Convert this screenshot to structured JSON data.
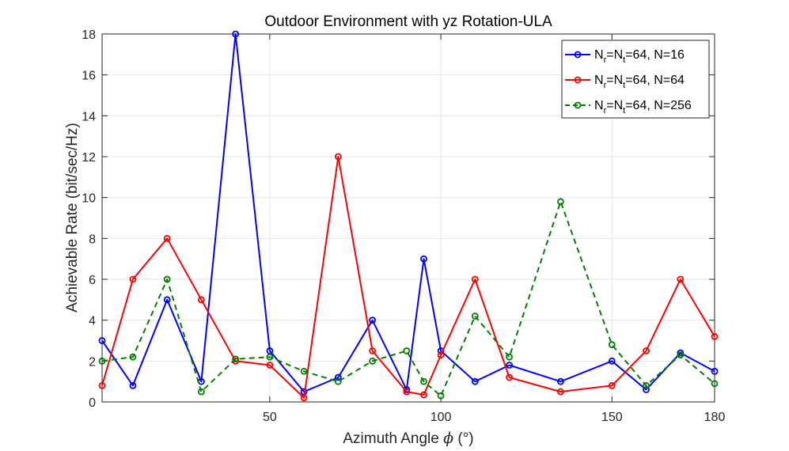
{
  "chart_data": {
    "type": "line",
    "title": "Outdoor Environment with yz Rotation-ULA",
    "xlabel": "Azimuth Angle",
    "xlabel_symbol": "ϕ",
    "xlabel_unit": "(°)",
    "ylabel": "Achievable Rate (bit/sec/Hz)",
    "xlim": [
      1,
      180
    ],
    "ylim": [
      0,
      18
    ],
    "xticks": [
      50,
      100,
      150,
      180
    ],
    "yticks": [
      0,
      2,
      4,
      6,
      8,
      10,
      12,
      14,
      16,
      18
    ],
    "xtick_labels": [
      "50",
      "100",
      "150",
      "180"
    ],
    "ytick_labels": [
      "0",
      "2",
      "4",
      "6",
      "8",
      "10",
      "12",
      "14",
      "16",
      "18"
    ],
    "grid": true,
    "legend_position": "top-right",
    "x": [
      1,
      10,
      20,
      30,
      40,
      50,
      60,
      70,
      80,
      90,
      95,
      100,
      110,
      120,
      135,
      150,
      160,
      170,
      180
    ],
    "series": [
      {
        "name": "Nr=Nt=64, N=16",
        "legend_parts": [
          "N",
          "r",
          "=N",
          "t",
          "=64, N=16"
        ],
        "color": "#0000ff",
        "dash": "solid",
        "values": [
          3.0,
          0.8,
          5.0,
          1.0,
          18.0,
          2.5,
          0.5,
          1.2,
          4.0,
          0.6,
          7.0,
          2.5,
          1.0,
          1.8,
          1.0,
          2.0,
          0.6,
          2.4,
          1.5
        ]
      },
      {
        "name": "Nr=Nt=64, N=64",
        "legend_parts": [
          "N",
          "r",
          "=N",
          "t",
          "=64, N=64"
        ],
        "color": "#ff0000",
        "dash": "solid",
        "values": [
          0.8,
          6.0,
          8.0,
          5.0,
          2.0,
          1.8,
          0.2,
          12.0,
          2.5,
          0.5,
          0.35,
          2.3,
          6.0,
          1.2,
          0.5,
          0.8,
          2.5,
          6.0,
          3.2
        ]
      },
      {
        "name": "Nr=Nt=64, N=256",
        "legend_parts": [
          "N",
          "r",
          "=N",
          "t",
          "=64, N=256"
        ],
        "color": "#008000",
        "dash": "dashed",
        "values": [
          2.0,
          2.2,
          6.0,
          0.5,
          2.1,
          2.2,
          1.5,
          1.0,
          2.0,
          2.5,
          1.0,
          0.3,
          4.2,
          2.2,
          9.8,
          2.8,
          0.8,
          2.3,
          0.9
        ]
      }
    ]
  }
}
